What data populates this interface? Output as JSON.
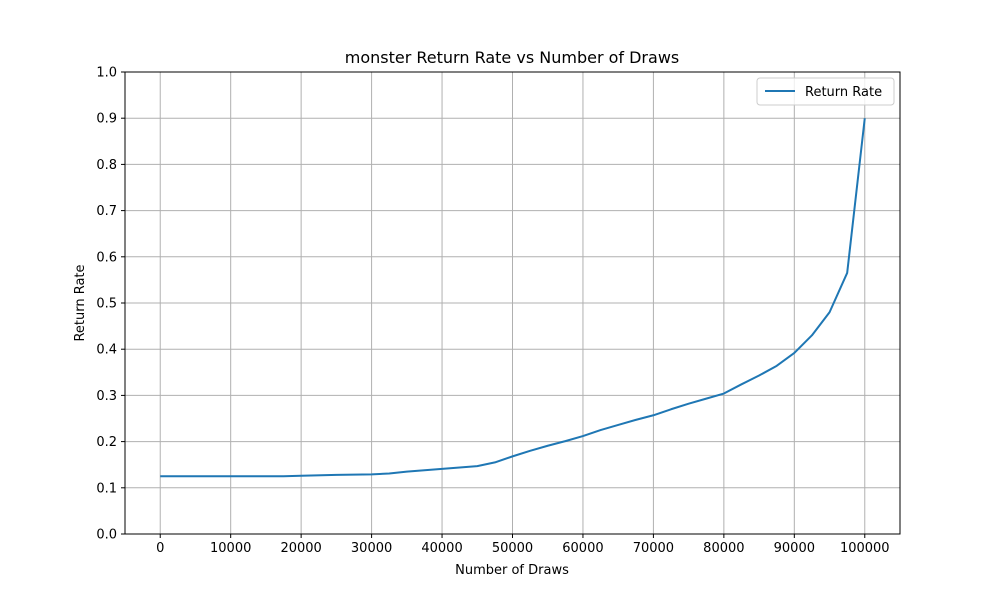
{
  "chart_data": {
    "type": "line",
    "title": "monster Return Rate vs Number of Draws",
    "xlabel": "Number of Draws",
    "ylabel": "Return Rate",
    "xlim": [
      -5000,
      105000
    ],
    "ylim": [
      0.0,
      1.0
    ],
    "xticks": [
      0,
      10000,
      20000,
      30000,
      40000,
      50000,
      60000,
      70000,
      80000,
      90000,
      100000
    ],
    "xtick_labels": [
      "0",
      "10000",
      "20000",
      "30000",
      "40000",
      "50000",
      "60000",
      "70000",
      "80000",
      "90000",
      "100000"
    ],
    "yticks": [
      0.0,
      0.1,
      0.2,
      0.3,
      0.4,
      0.5,
      0.6,
      0.7,
      0.8,
      0.9,
      1.0
    ],
    "ytick_labels": [
      "0.0",
      "0.1",
      "0.2",
      "0.3",
      "0.4",
      "0.5",
      "0.6",
      "0.7",
      "0.8",
      "0.9",
      "1.0"
    ],
    "grid": true,
    "legend_position": "top-right",
    "series": [
      {
        "name": "Return Rate",
        "color": "#1f77b4",
        "x": [
          0,
          5000,
          10000,
          15000,
          17500,
          20000,
          25000,
          30000,
          32500,
          35000,
          40000,
          42500,
          45000,
          47500,
          50000,
          52500,
          55000,
          57500,
          60000,
          62500,
          65000,
          67500,
          70000,
          72500,
          75000,
          77500,
          80000,
          82500,
          85000,
          87500,
          90000,
          92500,
          95000,
          97500,
          100000
        ],
        "y": [
          0.125,
          0.125,
          0.125,
          0.125,
          0.125,
          0.126,
          0.128,
          0.129,
          0.131,
          0.135,
          0.141,
          0.144,
          0.147,
          0.155,
          0.168,
          0.18,
          0.191,
          0.201,
          0.212,
          0.225,
          0.236,
          0.247,
          0.257,
          0.27,
          0.282,
          0.293,
          0.304,
          0.324,
          0.343,
          0.364,
          0.392,
          0.43,
          0.48,
          0.565,
          0.9
        ]
      }
    ]
  }
}
